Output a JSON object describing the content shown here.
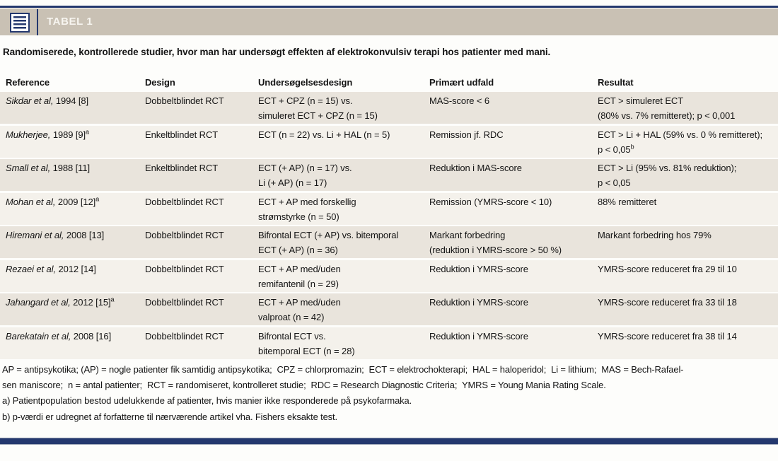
{
  "header": {
    "tag": "TABEL 1",
    "icon": "table-list-icon"
  },
  "caption": "Randomiserede, kontrollerede studier, hvor man har undersøgt effekten af elektrokonvulsiv terapi hos patienter med mani.",
  "columns": {
    "reference": "Reference",
    "design": "Design",
    "study_design": "Undersøgelsesdesign",
    "primary_outcome": "Primært udfald",
    "result": "Resultat"
  },
  "rows": [
    {
      "author": "Sikdar et al,",
      "year": " 1994 [8]",
      "sup": "",
      "design": "Dobbeltblindet RCT",
      "study1": "ECT + CPZ (n = 15) vs.",
      "study2": "simuleret ECT + CPZ (n = 15)",
      "outcome1": "MAS-score < 6",
      "outcome2": "",
      "result1": "ECT > simuleret ECT",
      "result2": "(80% vs. 7% remitteret); p < 0,001",
      "result_sup": ""
    },
    {
      "author": "Mukherjee,",
      "year": " 1989 [9]",
      "sup": "a",
      "design": "Enkeltblindet RCT",
      "study1": "ECT (n = 22) vs. Li + HAL (n = 5)",
      "study2": "",
      "outcome1": "Remission jf. RDC",
      "outcome2": "",
      "result1": "ECT > Li + HAL (59% vs. 0 % remitteret);",
      "result2": "p < 0,05",
      "result_sup": "b"
    },
    {
      "author": "Small et al,",
      "year": " 1988 [11]",
      "sup": "",
      "design": "Enkeltblindet RCT",
      "study1": "ECT (+ AP) (n = 17) vs.",
      "study2": "Li (+ AP) (n = 17)",
      "outcome1": "Reduktion i MAS-score",
      "outcome2": "",
      "result1": "ECT > Li (95% vs. 81% reduktion);",
      "result2": "p < 0,05",
      "result_sup": ""
    },
    {
      "author": "Mohan et al,",
      "year": " 2009 [12]",
      "sup": "a",
      "design": "Dobbeltblindet RCT",
      "study1": "ECT + AP med forskellig",
      "study2": "strømstyrke (n = 50)",
      "outcome1": "Remission (YMRS-score < 10)",
      "outcome2": "",
      "result1": "88% remitteret",
      "result2": "",
      "result_sup": ""
    },
    {
      "author": "Hiremani et al,",
      "year": " 2008 [13]",
      "sup": "",
      "design": "Dobbeltblindet RCT",
      "study1": "Bifrontal ECT (+ AP) vs. bitemporal",
      "study2": "ECT (+ AP) (n = 36)",
      "outcome1": "Markant forbedring",
      "outcome2": "(reduktion i YMRS-score > 50 %)",
      "result1": "Markant forbedring hos 79%",
      "result2": "",
      "result_sup": ""
    },
    {
      "author": "Rezaei et al,",
      "year": " 2012 [14]",
      "sup": "",
      "design": "Dobbeltblindet RCT",
      "study1": "ECT + AP med/uden",
      "study2": "remifantenil (n = 29)",
      "outcome1": "Reduktion i YMRS-score",
      "outcome2": "",
      "result1": "YMRS-score reduceret fra 29 til 10",
      "result2": "",
      "result_sup": ""
    },
    {
      "author": "Jahangard et al,",
      "year": " 2012 [15]",
      "sup": "a",
      "design": "Dobbeltblindet RCT",
      "study1": "ECT + AP med/uden",
      "study2": "valproat (n = 42)",
      "outcome1": "Reduktion i YMRS-score",
      "outcome2": "",
      "result1": "YMRS-score reduceret fra 33 til 18",
      "result2": "",
      "result_sup": ""
    },
    {
      "author": "Barekatain et al,",
      "year": " 2008 [16]",
      "sup": "",
      "design": "Dobbeltblindet RCT",
      "study1": "Bifrontal ECT vs.",
      "study2": "bitemporal ECT (n = 28)",
      "outcome1": "Reduktion i YMRS-score",
      "outcome2": "",
      "result1": "YMRS-score reduceret fra 38 til 14",
      "result2": "",
      "result_sup": ""
    }
  ],
  "footnotes": {
    "abbr1": "AP = antipsykotika; (AP) = nogle patienter fik samtidig antipsykotika;  CPZ = chlorpromazin;  ECT = elektrochokterapi;  HAL = haloperidol;  Li = lithium;  MAS = Bech-Rafael-",
    "abbr2": "sen maniscore;  n = antal patienter;  RCT = randomiseret, kontrolleret studie;  RDC = Research Diagnostic Criteria;  YMRS = Young Mania Rating Scale.",
    "note_a": "a) Patientpopulation bestod udelukkende af patienter, hvis manier ikke responderede på psykofarmaka.",
    "note_b": "b) p-værdi er udregnet af forfatterne til nærværende artikel vha. Fishers eksakte test."
  },
  "colors": {
    "navy": "#24386e",
    "header_beige": "#c9c1b4",
    "row_shade_dark": "#e9e4dc",
    "row_shade_light": "#f4f1eb"
  }
}
